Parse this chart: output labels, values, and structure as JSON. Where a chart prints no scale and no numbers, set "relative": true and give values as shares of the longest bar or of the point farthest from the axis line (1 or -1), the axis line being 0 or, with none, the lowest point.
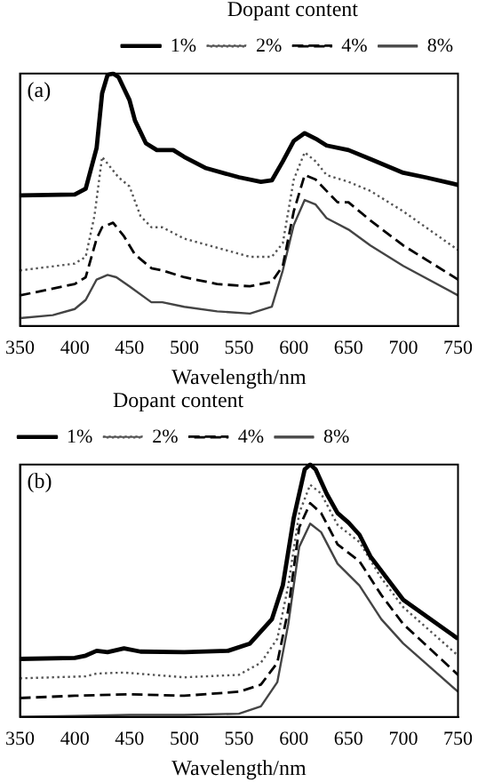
{
  "chart_data": [
    {
      "type": "line",
      "relative": true,
      "xlabel": "Wavelength/nm",
      "legend_title": "Dopant content",
      "legend": "top right",
      "annotations": [
        "(a)"
      ],
      "xlim": [
        350,
        750
      ],
      "xticks": [
        350,
        400,
        450,
        500,
        550,
        600,
        650,
        700,
        750
      ],
      "grid": false,
      "marker": "none",
      "series": [
        {
          "name": "1%",
          "color": "#000000",
          "line_style": "solid",
          "x": [
            350,
            400,
            410,
            420,
            425,
            430,
            435,
            440,
            445,
            450,
            455,
            465,
            475,
            490,
            500,
            520,
            550,
            570,
            580,
            590,
            600,
            610,
            620,
            630,
            650,
            670,
            700,
            720,
            750
          ],
          "values": [
            0.517,
            0.521,
            0.544,
            0.706,
            0.922,
            0.995,
            1.0,
            0.986,
            0.94,
            0.895,
            0.814,
            0.724,
            0.697,
            0.697,
            0.67,
            0.625,
            0.589,
            0.571,
            0.577,
            0.652,
            0.733,
            0.764,
            0.742,
            0.715,
            0.697,
            0.661,
            0.607,
            0.589,
            0.559
          ]
        },
        {
          "name": "2%",
          "color": "#555555",
          "line_style": "dotted",
          "x": [
            350,
            400,
            410,
            418,
            425,
            430,
            440,
            450,
            460,
            470,
            480,
            500,
            530,
            560,
            580,
            590,
            600,
            610,
            620,
            630,
            650,
            670,
            700,
            750
          ],
          "values": [
            0.22,
            0.247,
            0.274,
            0.436,
            0.67,
            0.643,
            0.589,
            0.553,
            0.436,
            0.391,
            0.391,
            0.346,
            0.31,
            0.274,
            0.274,
            0.328,
            0.58,
            0.688,
            0.652,
            0.598,
            0.571,
            0.535,
            0.454,
            0.301
          ]
        },
        {
          "name": "4%",
          "color": "#000000",
          "line_style": "dashed",
          "x": [
            350,
            400,
            410,
            420,
            425,
            435,
            445,
            455,
            470,
            480,
            500,
            530,
            560,
            580,
            590,
            600,
            610,
            620,
            630,
            640,
            650,
            670,
            700,
            750
          ],
          "values": [
            0.121,
            0.166,
            0.193,
            0.346,
            0.391,
            0.409,
            0.355,
            0.283,
            0.229,
            0.22,
            0.193,
            0.166,
            0.157,
            0.175,
            0.238,
            0.454,
            0.598,
            0.58,
            0.535,
            0.49,
            0.49,
            0.418,
            0.319,
            0.184
          ]
        },
        {
          "name": "8%",
          "color": "#444444",
          "line_style": "solid",
          "x": [
            350,
            380,
            400,
            410,
            420,
            430,
            438,
            450,
            470,
            480,
            500,
            530,
            560,
            580,
            590,
            600,
            610,
            620,
            630,
            650,
            670,
            700,
            750
          ],
          "values": [
            0.031,
            0.043,
            0.067,
            0.103,
            0.184,
            0.202,
            0.193,
            0.157,
            0.094,
            0.094,
            0.076,
            0.058,
            0.049,
            0.076,
            0.22,
            0.4,
            0.499,
            0.481,
            0.427,
            0.382,
            0.319,
            0.238,
            0.121
          ]
        }
      ]
    },
    {
      "type": "line",
      "relative": true,
      "xlabel": "Wavelength/nm",
      "legend_title": "Dopant content",
      "legend": "top left",
      "annotations": [
        "(b)"
      ],
      "xlim": [
        350,
        750
      ],
      "xticks": [
        350,
        400,
        450,
        500,
        550,
        600,
        650,
        700,
        750
      ],
      "grid": false,
      "marker": "none",
      "series": [
        {
          "name": "1%",
          "color": "#000000",
          "line_style": "solid",
          "x": [
            350,
            400,
            410,
            420,
            430,
            445,
            460,
            500,
            540,
            560,
            580,
            590,
            600,
            610,
            615,
            620,
            630,
            640,
            650,
            660,
            670,
            700,
            750
          ],
          "values": [
            0.23,
            0.234,
            0.243,
            0.262,
            0.257,
            0.272,
            0.259,
            0.257,
            0.262,
            0.291,
            0.387,
            0.521,
            0.789,
            0.981,
            1.0,
            0.981,
            0.885,
            0.808,
            0.77,
            0.722,
            0.636,
            0.464,
            0.31
          ]
        },
        {
          "name": "2%",
          "color": "#555555",
          "line_style": "dotted",
          "x": [
            350,
            410,
            420,
            445,
            500,
            550,
            570,
            585,
            595,
            605,
            615,
            625,
            640,
            660,
            680,
            700,
            750
          ],
          "values": [
            0.153,
            0.161,
            0.172,
            0.176,
            0.157,
            0.167,
            0.215,
            0.31,
            0.521,
            0.808,
            0.92,
            0.885,
            0.761,
            0.693,
            0.55,
            0.435,
            0.243
          ]
        },
        {
          "name": "4%",
          "color": "#000000",
          "line_style": "dashed",
          "x": [
            350,
            400,
            450,
            500,
            550,
            570,
            585,
            595,
            605,
            615,
            625,
            640,
            660,
            680,
            700,
            750
          ],
          "values": [
            0.075,
            0.084,
            0.09,
            0.084,
            0.1,
            0.128,
            0.215,
            0.425,
            0.751,
            0.847,
            0.808,
            0.684,
            0.617,
            0.483,
            0.368,
            0.167
          ]
        },
        {
          "name": "8%",
          "color": "#444444",
          "line_style": "solid",
          "x": [
            350,
            400,
            450,
            500,
            550,
            570,
            585,
            595,
            605,
            615,
            625,
            640,
            660,
            680,
            700,
            750
          ],
          "values": [
            0,
            0.004,
            0.008,
            0.008,
            0.013,
            0.042,
            0.138,
            0.368,
            0.674,
            0.766,
            0.732,
            0.607,
            0.521,
            0.387,
            0.291,
            0.1
          ]
        }
      ]
    }
  ]
}
